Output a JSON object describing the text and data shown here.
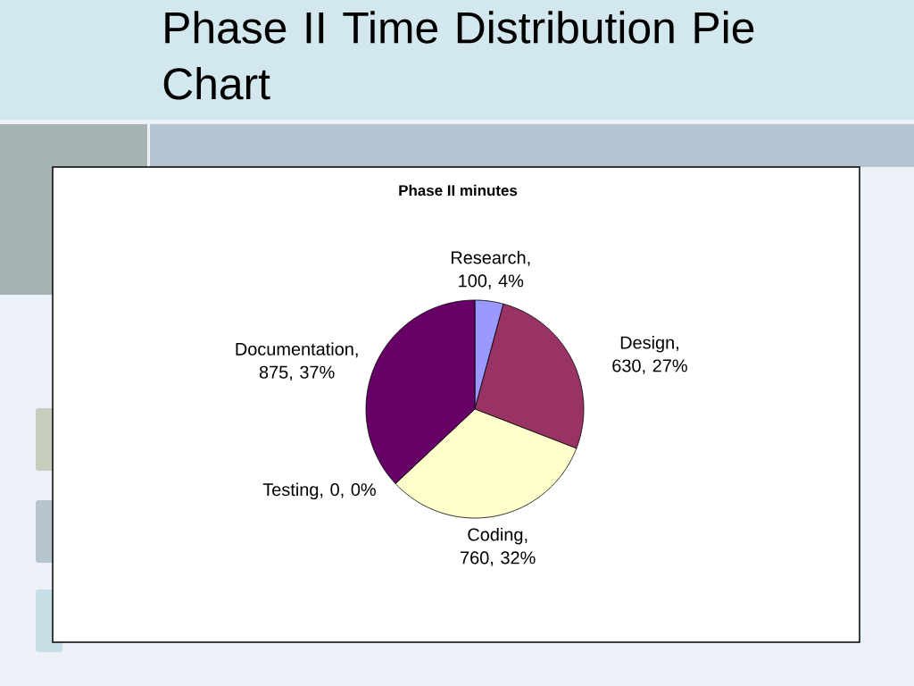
{
  "chart_data": {
    "type": "pie",
    "title": "Phase II Time Distribution Pie Chart",
    "subtitle": "Phase II minutes",
    "categories": [
      "Research",
      "Design",
      "Coding",
      "Testing",
      "Documentation"
    ],
    "values": [
      100,
      630,
      760,
      0,
      875
    ],
    "colors": [
      "#9999ff",
      "#993366",
      "#ffffcc",
      "#ccffff",
      "#660066"
    ],
    "value_labels": [
      ", 100, 4%",
      ", 630, 27%",
      ", 760, 32%",
      ", 0, 0%",
      ", 875, 37%"
    ]
  }
}
